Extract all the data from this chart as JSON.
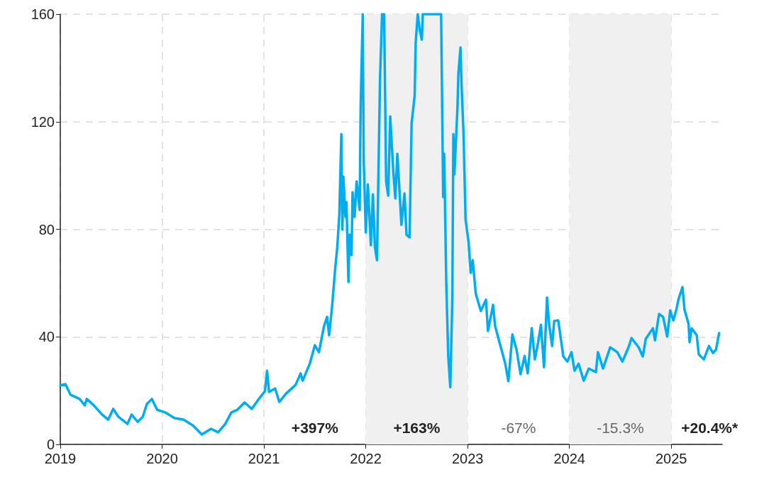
{
  "chart_data": {
    "type": "line",
    "x": [
      2019.0,
      2019.05,
      2019.1,
      2019.19,
      2019.24,
      2019.26,
      2019.33,
      2019.41,
      2019.47,
      2019.52,
      2019.57,
      2019.66,
      2019.7,
      2019.76,
      2019.81,
      2019.85,
      2019.9,
      2019.95,
      2020.03,
      2020.12,
      2020.21,
      2020.3,
      2020.39,
      2020.48,
      2020.55,
      2020.62,
      2020.68,
      2020.74,
      2020.81,
      2020.88,
      2020.95,
      2021.01,
      2021.03,
      2021.05,
      2021.11,
      2021.15,
      2021.22,
      2021.31,
      2021.36,
      2021.38,
      2021.45,
      2021.5,
      2021.54,
      2021.59,
      2021.62,
      2021.64,
      2021.67,
      2021.7,
      2021.72,
      2021.74,
      2021.76,
      2021.77,
      2021.78,
      2021.8,
      2021.81,
      2021.83,
      2021.84,
      2021.86,
      2021.87,
      2021.89,
      2021.91,
      2021.94,
      2021.95,
      2021.97,
      2021.98,
      2022.0,
      2022.02,
      2022.05,
      2022.07,
      2022.09,
      2022.11,
      2022.14,
      2022.16,
      2022.18,
      2022.2,
      2022.22,
      2022.24,
      2022.27,
      2022.29,
      2022.31,
      2022.35,
      2022.38,
      2022.4,
      2022.43,
      2022.45,
      2022.48,
      2022.49,
      2022.51,
      2022.53,
      2022.55,
      2022.56,
      2022.74,
      2022.76,
      2022.77,
      2022.79,
      2022.81,
      2022.83,
      2022.85,
      2022.86,
      2022.87,
      2022.9,
      2022.91,
      2022.93,
      2022.94,
      2022.96,
      2022.98,
      2023.01,
      2023.03,
      2023.05,
      2023.08,
      2023.13,
      2023.18,
      2023.2,
      2023.25,
      2023.27,
      2023.37,
      2023.4,
      2023.44,
      2023.48,
      2023.52,
      2023.56,
      2023.59,
      2023.63,
      2023.66,
      2023.69,
      2023.72,
      2023.75,
      2023.78,
      2023.8,
      2023.83,
      2023.85,
      2023.89,
      2023.94,
      2023.98,
      2024.02,
      2024.05,
      2024.09,
      2024.14,
      2024.19,
      2024.26,
      2024.28,
      2024.33,
      2024.4,
      2024.47,
      2024.52,
      2024.58,
      2024.61,
      2024.68,
      2024.72,
      2024.75,
      2024.82,
      2024.84,
      2024.88,
      2024.92,
      2024.96,
      2024.99,
      2025.02,
      2025.05,
      2025.07,
      2025.11,
      2025.13,
      2025.17,
      2025.18,
      2025.2,
      2025.25,
      2025.27,
      2025.32,
      2025.37,
      2025.41,
      2025.44,
      2025.47
    ],
    "series": [
      {
        "color": "#00aeef",
        "values": [
          22,
          22.4,
          18.5,
          16.9,
          14.5,
          16.9,
          14.5,
          11.1,
          9.2,
          13.2,
          10.3,
          7.6,
          11.1,
          8.4,
          10.3,
          15,
          16.9,
          12.9,
          11.9,
          9.8,
          9.2,
          7.1,
          3.7,
          5.8,
          4.5,
          7.6,
          11.9,
          12.9,
          15.6,
          13.2,
          16.9,
          19.8,
          27.4,
          19.5,
          20.8,
          15.8,
          19,
          22.1,
          26.4,
          23.7,
          30,
          36.9,
          34.3,
          44,
          47.4,
          40.6,
          51.7,
          65.6,
          73.3,
          85.4,
          115.4,
          79.9,
          99.6,
          84.6,
          90.1,
          60.4,
          78,
          70.4,
          93.8,
          84.6,
          97.8,
          87.2,
          126.8,
          160,
          105.2,
          78.8,
          96.7,
          74.1,
          93,
          73.3,
          68.5,
          136.3,
          160,
          160,
          97.8,
          92.5,
          122,
          101.5,
          91.5,
          108.1,
          81.7,
          93.3,
          78,
          77,
          119.4,
          129.7,
          149.4,
          160,
          154.2,
          150.5,
          160,
          160,
          92,
          108.1,
          60.9,
          32.7,
          21.3,
          54.3,
          115.4,
          100.4,
          124.9,
          138.1,
          147.6,
          134.4,
          115.4,
          83.6,
          75.1,
          63.8,
          68.5,
          56.1,
          49.6,
          53.8,
          42.2,
          51.9,
          44,
          30,
          23.5,
          40.9,
          35.3,
          26.1,
          32.9,
          26.4,
          43.2,
          31.6,
          37.4,
          44.5,
          28.7,
          54.6,
          44.8,
          36.6,
          45.9,
          46.1,
          32.7,
          30.8,
          34.3,
          27.4,
          30,
          23.7,
          28.2,
          26.9,
          34.3,
          28.2,
          36.1,
          34.3,
          30.8,
          36.1,
          39.5,
          36.1,
          32.7,
          39.3,
          43.2,
          38.7,
          48.5,
          47.4,
          40.1,
          49.8,
          46.1,
          50.1,
          53.8,
          58.5,
          50.1,
          44.8,
          38,
          43.2,
          40.6,
          33.5,
          31.6,
          36.6,
          34,
          35.3,
          41.4
        ]
      }
    ],
    "xlim": [
      2019,
      2025.5
    ],
    "xticks": [
      2019,
      2020,
      2021,
      2022,
      2023,
      2024,
      2025
    ],
    "ylim": [
      0,
      160
    ],
    "yticks": [
      0,
      40,
      80,
      120,
      160
    ],
    "grid": true,
    "marker": "none",
    "line_style": "solid",
    "bands": [
      {
        "axis": "x",
        "from": 2022,
        "to": 2023,
        "color": "#f0f0f0"
      },
      {
        "axis": "x",
        "from": 2024,
        "to": 2025,
        "color": "#f0f0f0"
      }
    ],
    "annotations": [
      "+397%",
      "+163%",
      "-67%",
      "-15.3%",
      "+20.4%*"
    ]
  }
}
